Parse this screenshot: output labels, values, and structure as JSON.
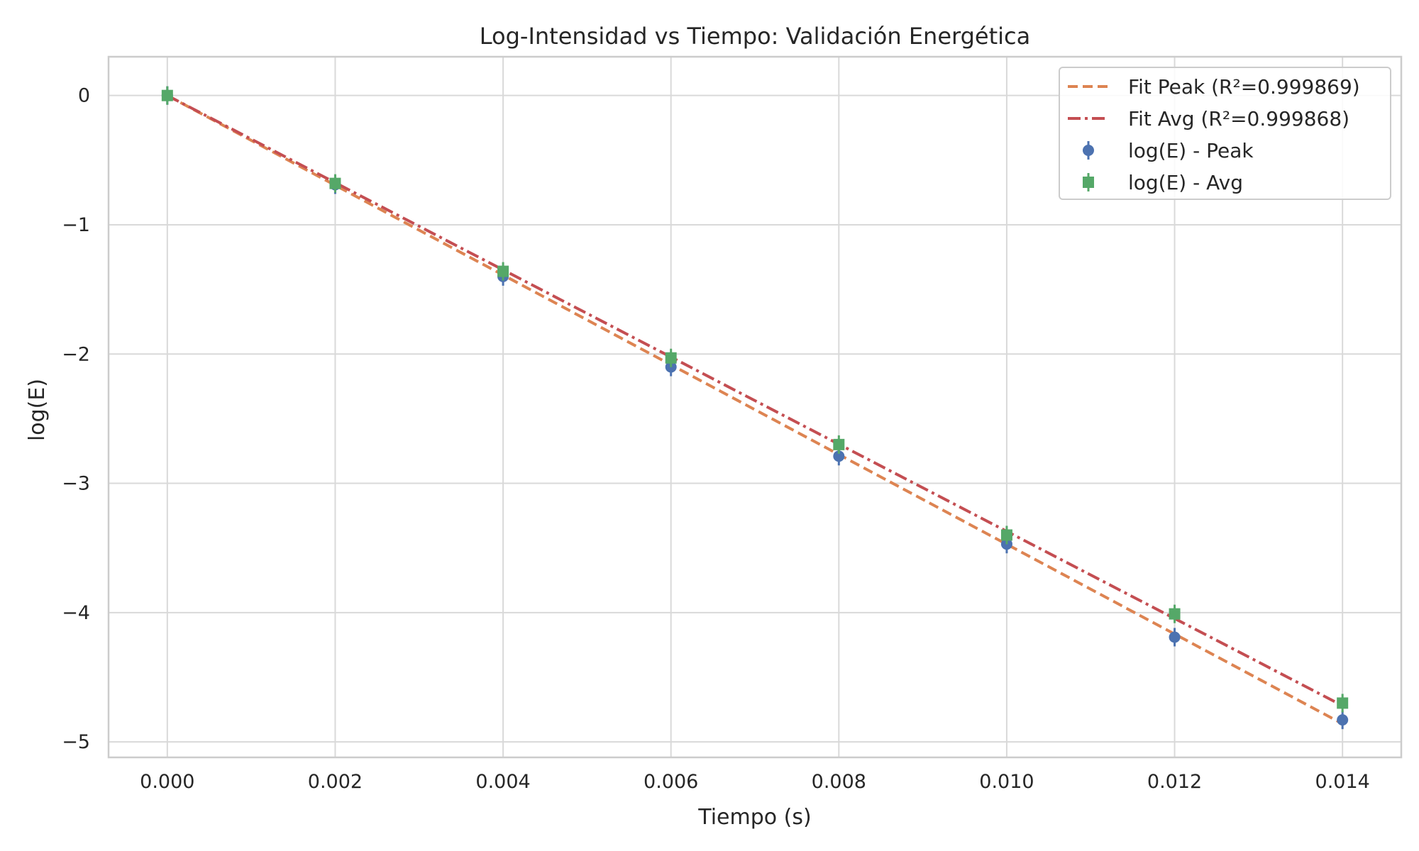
{
  "chart_data": {
    "type": "scatter",
    "title": "Log-Intensidad vs Tiempo: Validación Energética",
    "xlabel": "Tiempo (s)",
    "ylabel": "log(E)",
    "xlim": [
      -0.0007,
      0.0147
    ],
    "ylim": [
      -5.12,
      0.3
    ],
    "x_ticks": [
      0.0,
      0.002,
      0.004,
      0.006,
      0.008,
      0.01,
      0.012,
      0.014
    ],
    "x_tick_labels": [
      "0.000",
      "0.002",
      "0.004",
      "0.006",
      "0.008",
      "0.010",
      "0.012",
      "0.014"
    ],
    "y_ticks": [
      0,
      -1,
      -2,
      -3,
      -4,
      -5
    ],
    "y_tick_labels": [
      "0",
      "−1",
      "−2",
      "−3",
      "−4",
      "−5"
    ],
    "grid": true,
    "legend_position": "top-right",
    "colors": {
      "peak_fit": "#dd8452",
      "avg_fit": "#c44e52",
      "peak_points": "#4c72b0",
      "avg_points": "#55a868"
    },
    "series": [
      {
        "name": "Fit Peak (R²=0.999869)",
        "kind": "line",
        "style": "dashed",
        "x": [
          0.0,
          0.014
        ],
        "y": [
          0.0,
          -4.86
        ]
      },
      {
        "name": "Fit Avg (R²=0.999868)",
        "kind": "line",
        "style": "dashdot",
        "x": [
          0.0,
          0.014
        ],
        "y": [
          0.0,
          -4.72
        ]
      },
      {
        "name": "log(E) - Peak",
        "kind": "errorbar",
        "marker": "circle",
        "x": [
          0.0,
          0.002,
          0.004,
          0.006,
          0.008,
          0.01,
          0.012,
          0.014
        ],
        "y": [
          0.0,
          -0.69,
          -1.4,
          -2.1,
          -2.79,
          -3.47,
          -4.19,
          -4.83
        ]
      },
      {
        "name": "log(E) - Avg",
        "kind": "errorbar",
        "marker": "square",
        "x": [
          0.0,
          0.002,
          0.004,
          0.006,
          0.008,
          0.01,
          0.012,
          0.014
        ],
        "y": [
          0.0,
          -0.68,
          -1.36,
          -2.03,
          -2.7,
          -3.4,
          -4.01,
          -4.7
        ]
      }
    ]
  }
}
